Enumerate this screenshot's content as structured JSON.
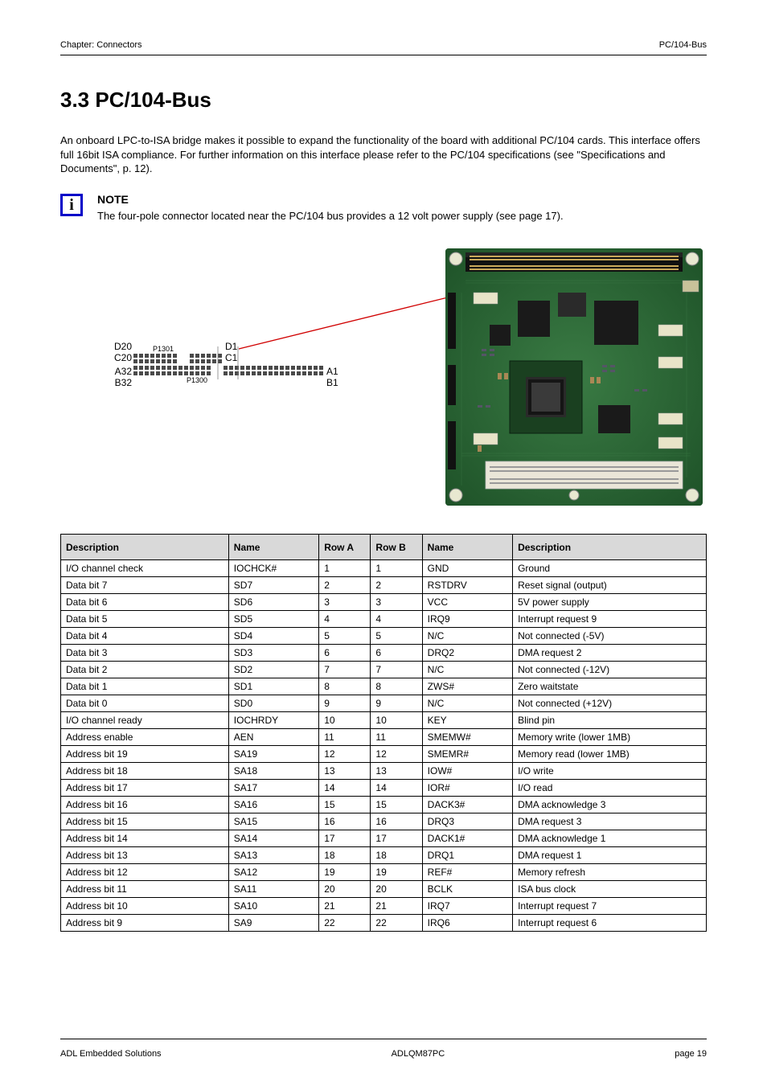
{
  "header": {
    "left": "Chapter: Connectors",
    "right": "PC/104-Bus"
  },
  "section_title": "3.3 PC/104-Bus",
  "intro": "An onboard LPC-to-ISA bridge makes it possible to expand the functionality of the board with additional PC/104 cards. This interface offers full 16bit ISA compliance. For further information on this interface please refer to the PC/104 specifications (see \"Specifications and Documents\", p. 12).",
  "info_note": "The four-pole connector located near the PC/104 bus provides a 12 volt power supply (see page 17).",
  "diagram": {
    "labels": {
      "p1301": "P1301",
      "p1300": "P1300",
      "d20": "D20",
      "c20": "C20",
      "a32": "A32",
      "b32": "B32",
      "d1": "D1",
      "c1": "C1",
      "a1": "A1",
      "b1": "B1"
    }
  },
  "table": {
    "headers": [
      "Description",
      "Name",
      "Row A",
      "Row B",
      "Name",
      "Description"
    ],
    "rows": [
      [
        "I/O channel check",
        "IOCHCK#",
        "1",
        "1",
        "GND",
        "Ground"
      ],
      [
        "Data bit 7",
        "SD7",
        "2",
        "2",
        "RSTDRV",
        "Reset signal (output)"
      ],
      [
        "Data bit 6",
        "SD6",
        "3",
        "3",
        "VCC",
        "5V power supply"
      ],
      [
        "Data bit 5",
        "SD5",
        "4",
        "4",
        "IRQ9",
        "Interrupt request 9"
      ],
      [
        "Data bit 4",
        "SD4",
        "5",
        "5",
        "N/C",
        "Not connected (-5V)"
      ],
      [
        "Data bit 3",
        "SD3",
        "6",
        "6",
        "DRQ2",
        "DMA request 2"
      ],
      [
        "Data bit 2",
        "SD2",
        "7",
        "7",
        "N/C",
        "Not connected (-12V)"
      ],
      [
        "Data bit 1",
        "SD1",
        "8",
        "8",
        "ZWS#",
        "Zero waitstate"
      ],
      [
        "Data bit 0",
        "SD0",
        "9",
        "9",
        "N/C",
        "Not connected (+12V)"
      ],
      [
        "I/O channel ready",
        "IOCHRDY",
        "10",
        "10",
        "KEY",
        "Blind pin"
      ],
      [
        "Address enable",
        "AEN",
        "11",
        "11",
        "SMEMW#",
        "Memory write (lower 1MB)"
      ],
      [
        "Address bit 19",
        "SA19",
        "12",
        "12",
        "SMEMR#",
        "Memory read (lower 1MB)"
      ],
      [
        "Address bit 18",
        "SA18",
        "13",
        "13",
        "IOW#",
        "I/O write"
      ],
      [
        "Address bit 17",
        "SA17",
        "14",
        "14",
        "IOR#",
        "I/O read"
      ],
      [
        "Address bit 16",
        "SA16",
        "15",
        "15",
        "DACK3#",
        "DMA acknowledge 3"
      ],
      [
        "Address bit 15",
        "SA15",
        "16",
        "16",
        "DRQ3",
        "DMA request 3"
      ],
      [
        "Address bit 14",
        "SA14",
        "17",
        "17",
        "DACK1#",
        "DMA acknowledge 1"
      ],
      [
        "Address bit 13",
        "SA13",
        "18",
        "18",
        "DRQ1",
        "DMA request 1"
      ],
      [
        "Address bit 12",
        "SA12",
        "19",
        "19",
        "REF#",
        "Memory refresh"
      ],
      [
        "Address bit 11",
        "SA11",
        "20",
        "20",
        "BCLK",
        "ISA bus clock"
      ],
      [
        "Address bit 10",
        "SA10",
        "21",
        "21",
        "IRQ7",
        "Interrupt request 7"
      ],
      [
        "Address bit 9",
        "SA9",
        "22",
        "22",
        "IRQ6",
        "Interrupt request 6"
      ]
    ]
  },
  "footer": {
    "left": "ADL Embedded Solutions",
    "center": "ADLQM87PC",
    "right": "page 19"
  },
  "board": {
    "pcb_color": "#2a6b34",
    "pcb_dark": "#153a1a",
    "silk": "#d8e8d8",
    "chip_dark": "#1a1a1a",
    "chip_gray": "#3c3c3c",
    "connector_black": "#111111",
    "connector_beige": "#c9c29a",
    "copper": "#a87b3a",
    "hole": "#e8e8d0",
    "pin_gold": "#c9a85a"
  }
}
